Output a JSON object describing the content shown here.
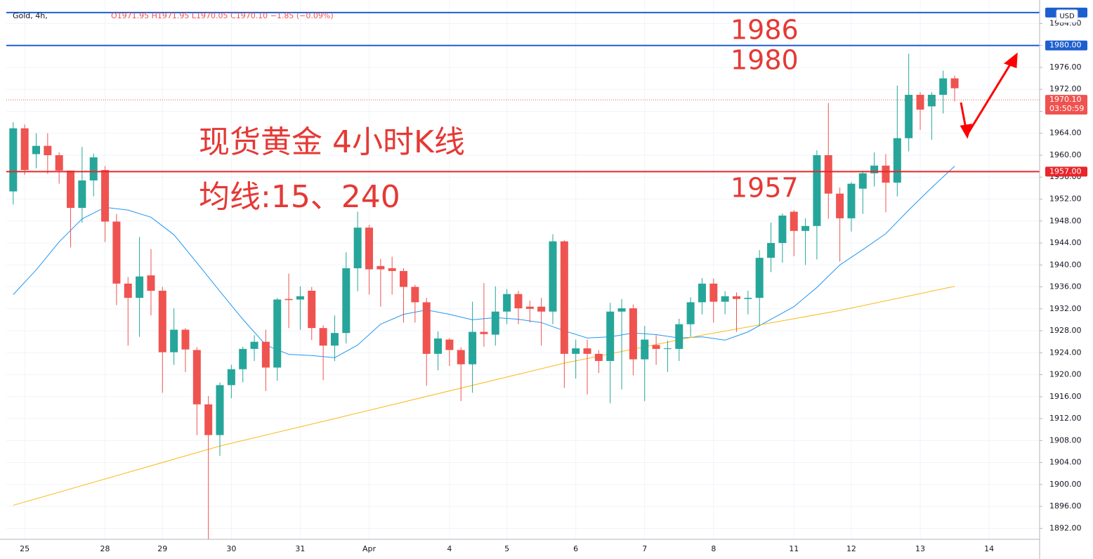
{
  "chart_data": {
    "type": "candlestick",
    "symbol": "Gold, 4h,",
    "ohlc_header": "O1971.95 H1971.95 L1970.05 C1970.10 −1.85 (−0.09%)",
    "currency": "USD",
    "up_color": "#26a69a",
    "down_color": "#ef5350",
    "xlim": [
      -0.6,
      89.4
    ],
    "ylim": [
      1890,
      1987
    ],
    "xticks": [
      {
        "value": 1,
        "label": "25"
      },
      {
        "value": 8,
        "label": "28"
      },
      {
        "value": 13,
        "label": "29"
      },
      {
        "value": 19,
        "label": "30"
      },
      {
        "value": 25,
        "label": "31"
      },
      {
        "value": 31,
        "label": "Apr"
      },
      {
        "value": 38,
        "label": "4"
      },
      {
        "value": 43,
        "label": "5"
      },
      {
        "value": 49,
        "label": "6"
      },
      {
        "value": 55,
        "label": "7"
      },
      {
        "value": 61,
        "label": "8"
      },
      {
        "value": 68,
        "label": "11"
      },
      {
        "value": 73,
        "label": "12"
      },
      {
        "value": 79,
        "label": "13"
      },
      {
        "value": 85,
        "label": "14"
      }
    ],
    "yticks": [
      {
        "value": 1892,
        "label": "1892.00"
      },
      {
        "value": 1896,
        "label": "1896.00"
      },
      {
        "value": 1900,
        "label": "1900.00"
      },
      {
        "value": 1904,
        "label": "1904.00"
      },
      {
        "value": 1908,
        "label": "1908.00"
      },
      {
        "value": 1912,
        "label": "1912.00"
      },
      {
        "value": 1916,
        "label": "1916.00"
      },
      {
        "value": 1920,
        "label": "1920.00"
      },
      {
        "value": 1924,
        "label": "1924.00"
      },
      {
        "value": 1928,
        "label": "1928.00"
      },
      {
        "value": 1932,
        "label": "1932.00"
      },
      {
        "value": 1936,
        "label": "1936.00"
      },
      {
        "value": 1940,
        "label": "1940.00"
      },
      {
        "value": 1944,
        "label": "1944.00"
      },
      {
        "value": 1948,
        "label": "1948.00"
      },
      {
        "value": 1952,
        "label": "1952.00"
      },
      {
        "value": 1956,
        "label": "1956.00"
      },
      {
        "value": 1960,
        "label": "1960.00"
      },
      {
        "value": 1964,
        "label": "1964.00"
      },
      {
        "value": 1968,
        "label": "1968.00"
      },
      {
        "value": 1972,
        "label": "1972.00"
      },
      {
        "value": 1976,
        "label": "1976.00"
      },
      {
        "value": 1980,
        "label": "1980.00"
      },
      {
        "value": 1984,
        "label": "1984.00"
      }
    ],
    "grid": true,
    "candles": [
      {
        "o": 1953.4,
        "h": 1966.0,
        "l": 1951.0,
        "c": 1964.9
      },
      {
        "o": 1964.9,
        "h": 1965.6,
        "l": 1956.4,
        "c": 1957.3
      },
      {
        "o": 1960.2,
        "h": 1964.0,
        "l": 1957.6,
        "c": 1961.7
      },
      {
        "o": 1961.7,
        "h": 1964.0,
        "l": 1956.6,
        "c": 1960.0
      },
      {
        "o": 1960.0,
        "h": 1960.5,
        "l": 1954.8,
        "c": 1957.2
      },
      {
        "o": 1957.2,
        "h": 1957.0,
        "l": 1943.2,
        "c": 1950.4
      },
      {
        "o": 1950.4,
        "h": 1961.5,
        "l": 1947.7,
        "c": 1955.4
      },
      {
        "o": 1955.4,
        "h": 1960.3,
        "l": 1952.5,
        "c": 1959.6
      },
      {
        "o": 1957.3,
        "h": 1958.0,
        "l": 1944.2,
        "c": 1947.9
      },
      {
        "o": 1947.9,
        "h": 1949.3,
        "l": 1932.7,
        "c": 1936.6
      },
      {
        "o": 1936.6,
        "h": 1937.8,
        "l": 1925.3,
        "c": 1934.0
      },
      {
        "o": 1934.0,
        "h": 1945.1,
        "l": 1926.9,
        "c": 1937.9
      },
      {
        "o": 1938.1,
        "h": 1942.9,
        "l": 1930.8,
        "c": 1935.3
      },
      {
        "o": 1935.3,
        "h": 1936.0,
        "l": 1916.7,
        "c": 1924.1
      },
      {
        "o": 1924.1,
        "h": 1932.1,
        "l": 1921.8,
        "c": 1928.2
      },
      {
        "o": 1928.2,
        "h": 1928.5,
        "l": 1920.5,
        "c": 1924.6
      },
      {
        "o": 1924.5,
        "h": 1925.0,
        "l": 1909.0,
        "c": 1914.6
      },
      {
        "o": 1914.6,
        "h": 1916.1,
        "l": 1890.0,
        "c": 1909.0
      },
      {
        "o": 1909.0,
        "h": 1918.6,
        "l": 1905.2,
        "c": 1918.1
      },
      {
        "o": 1918.1,
        "h": 1921.8,
        "l": 1915.7,
        "c": 1921.0
      },
      {
        "o": 1921.0,
        "h": 1925.1,
        "l": 1918.6,
        "c": 1924.7
      },
      {
        "o": 1924.7,
        "h": 1927.2,
        "l": 1922.5,
        "c": 1926.0
      },
      {
        "o": 1926.0,
        "h": 1928.2,
        "l": 1917.0,
        "c": 1921.3
      },
      {
        "o": 1921.3,
        "h": 1934.0,
        "l": 1918.9,
        "c": 1933.7
      },
      {
        "o": 1933.8,
        "h": 1938.4,
        "l": 1928.5,
        "c": 1933.6
      },
      {
        "o": 1933.7,
        "h": 1936.1,
        "l": 1928.2,
        "c": 1934.3
      },
      {
        "o": 1935.3,
        "h": 1936.0,
        "l": 1926.3,
        "c": 1928.5
      },
      {
        "o": 1928.5,
        "h": 1929.0,
        "l": 1919.0,
        "c": 1925.3
      },
      {
        "o": 1925.3,
        "h": 1930.8,
        "l": 1922.5,
        "c": 1927.6
      },
      {
        "o": 1927.6,
        "h": 1942.3,
        "l": 1925.7,
        "c": 1939.4
      },
      {
        "o": 1939.4,
        "h": 1949.7,
        "l": 1935.2,
        "c": 1946.8
      },
      {
        "o": 1946.8,
        "h": 1947.3,
        "l": 1934.6,
        "c": 1939.2
      },
      {
        "o": 1939.8,
        "h": 1941.1,
        "l": 1932.4,
        "c": 1939.2
      },
      {
        "o": 1939.4,
        "h": 1941.5,
        "l": 1934.6,
        "c": 1938.9
      },
      {
        "o": 1938.9,
        "h": 1939.4,
        "l": 1929.5,
        "c": 1936.0
      },
      {
        "o": 1936.0,
        "h": 1936.4,
        "l": 1929.5,
        "c": 1933.2
      },
      {
        "o": 1933.2,
        "h": 1934.0,
        "l": 1918.0,
        "c": 1923.8
      },
      {
        "o": 1923.8,
        "h": 1927.9,
        "l": 1920.8,
        "c": 1926.6
      },
      {
        "o": 1926.4,
        "h": 1926.7,
        "l": 1921.6,
        "c": 1924.5
      },
      {
        "o": 1924.5,
        "h": 1925.0,
        "l": 1915.2,
        "c": 1921.9
      },
      {
        "o": 1921.9,
        "h": 1933.3,
        "l": 1916.7,
        "c": 1927.8
      },
      {
        "o": 1927.8,
        "h": 1936.7,
        "l": 1925.1,
        "c": 1927.4
      },
      {
        "o": 1927.3,
        "h": 1936.1,
        "l": 1925.3,
        "c": 1931.5
      },
      {
        "o": 1931.5,
        "h": 1935.6,
        "l": 1929.2,
        "c": 1934.7
      },
      {
        "o": 1934.7,
        "h": 1935.3,
        "l": 1929.2,
        "c": 1932.1
      },
      {
        "o": 1932.4,
        "h": 1933.5,
        "l": 1929.5,
        "c": 1932.0
      },
      {
        "o": 1932.4,
        "h": 1934.0,
        "l": 1925.3,
        "c": 1931.5
      },
      {
        "o": 1931.5,
        "h": 1945.6,
        "l": 1929.2,
        "c": 1944.3
      },
      {
        "o": 1944.3,
        "h": 1944.5,
        "l": 1917.6,
        "c": 1923.8
      },
      {
        "o": 1923.8,
        "h": 1926.4,
        "l": 1919.3,
        "c": 1924.8
      },
      {
        "o": 1924.8,
        "h": 1926.4,
        "l": 1916.4,
        "c": 1923.8
      },
      {
        "o": 1923.8,
        "h": 1924.5,
        "l": 1920.3,
        "c": 1922.5
      },
      {
        "o": 1922.5,
        "h": 1933.1,
        "l": 1914.8,
        "c": 1931.5
      },
      {
        "o": 1931.5,
        "h": 1933.8,
        "l": 1917.3,
        "c": 1932.1
      },
      {
        "o": 1932.1,
        "h": 1932.8,
        "l": 1919.9,
        "c": 1922.8
      },
      {
        "o": 1922.8,
        "h": 1928.9,
        "l": 1915.2,
        "c": 1926.4
      },
      {
        "o": 1925.4,
        "h": 1927.2,
        "l": 1921.8,
        "c": 1924.7
      },
      {
        "o": 1924.7,
        "h": 1926.2,
        "l": 1920.5,
        "c": 1924.8
      },
      {
        "o": 1924.7,
        "h": 1930.2,
        "l": 1922.5,
        "c": 1929.2
      },
      {
        "o": 1929.2,
        "h": 1934.1,
        "l": 1926.9,
        "c": 1933.2
      },
      {
        "o": 1933.2,
        "h": 1937.6,
        "l": 1931.0,
        "c": 1936.6
      },
      {
        "o": 1936.6,
        "h": 1937.5,
        "l": 1929.5,
        "c": 1933.3
      },
      {
        "o": 1933.3,
        "h": 1935.2,
        "l": 1931.0,
        "c": 1934.3
      },
      {
        "o": 1934.3,
        "h": 1935.0,
        "l": 1927.8,
        "c": 1933.8
      },
      {
        "o": 1933.8,
        "h": 1935.3,
        "l": 1931.0,
        "c": 1934.0
      },
      {
        "o": 1934.0,
        "h": 1942.7,
        "l": 1928.9,
        "c": 1941.3
      },
      {
        "o": 1941.3,
        "h": 1947.7,
        "l": 1938.7,
        "c": 1944.0
      },
      {
        "o": 1944.0,
        "h": 1949.4,
        "l": 1940.4,
        "c": 1949.0
      },
      {
        "o": 1949.7,
        "h": 1950.0,
        "l": 1941.6,
        "c": 1946.2
      },
      {
        "o": 1946.2,
        "h": 1948.5,
        "l": 1940.0,
        "c": 1947.1
      },
      {
        "o": 1947.1,
        "h": 1960.9,
        "l": 1941.0,
        "c": 1960.0
      },
      {
        "o": 1960.0,
        "h": 1969.5,
        "l": 1948.4,
        "c": 1953.0
      },
      {
        "o": 1953.0,
        "h": 1954.1,
        "l": 1940.6,
        "c": 1948.5
      },
      {
        "o": 1948.5,
        "h": 1955.1,
        "l": 1946.1,
        "c": 1954.8
      },
      {
        "o": 1953.9,
        "h": 1957.2,
        "l": 1949.3,
        "c": 1956.7
      },
      {
        "o": 1956.7,
        "h": 1960.5,
        "l": 1954.3,
        "c": 1958.1
      },
      {
        "o": 1958.1,
        "h": 1960.2,
        "l": 1949.6,
        "c": 1955.0
      },
      {
        "o": 1955.0,
        "h": 1972.7,
        "l": 1952.5,
        "c": 1963.1
      },
      {
        "o": 1963.1,
        "h": 1978.5,
        "l": 1960.7,
        "c": 1971.0
      },
      {
        "o": 1971.0,
        "h": 1971.5,
        "l": 1964.6,
        "c": 1968.3
      },
      {
        "o": 1968.9,
        "h": 1971.5,
        "l": 1962.8,
        "c": 1971.0
      },
      {
        "o": 1971.0,
        "h": 1975.4,
        "l": 1967.6,
        "c": 1974.0
      },
      {
        "o": 1974.0,
        "h": 1974.5,
        "l": 1969.8,
        "c": 1972.2
      }
    ],
    "series": [
      {
        "color": "#2196f3",
        "x": [
          0,
          2,
          4,
          6,
          8,
          10,
          12,
          14,
          16,
          18,
          20,
          22,
          24,
          26,
          28,
          30,
          32,
          34,
          36,
          38,
          40,
          42,
          44,
          46,
          48,
          50,
          52,
          54,
          56,
          58,
          60,
          62,
          64,
          66,
          68,
          70,
          72,
          74,
          76,
          78,
          80,
          82
        ],
        "values": [
          1934.6,
          1939.1,
          1944.2,
          1948.4,
          1950.5,
          1950.0,
          1948.7,
          1945.5,
          1940.4,
          1935.2,
          1930.1,
          1925.4,
          1923.7,
          1923.5,
          1923.1,
          1925.4,
          1929.2,
          1931.0,
          1931.8,
          1931.0,
          1930.0,
          1930.4,
          1930.1,
          1929.5,
          1928.0,
          1926.7,
          1926.9,
          1927.6,
          1927.3,
          1926.7,
          1926.9,
          1926.3,
          1927.8,
          1930.1,
          1932.4,
          1935.9,
          1940.0,
          1942.8,
          1945.7,
          1950.0,
          1954.1,
          1958.0
        ]
      },
      {
        "color": "#f9b915",
        "x": [
          0,
          18,
          28,
          48,
          60,
          72,
          82
        ],
        "values": [
          1896.2,
          1907.0,
          1912.0,
          1922.1,
          1927.2,
          1931.7,
          1936.1
        ]
      }
    ],
    "levels": [
      {
        "value": 1986,
        "color": "#1e5fd0"
      },
      {
        "value": 1980,
        "color": "#1e5fd0",
        "label": "1980.00"
      },
      {
        "value": 1957,
        "color": "#e8262b",
        "label": "1957.00"
      }
    ],
    "current_price": {
      "value": 1970.1,
      "label": "1970.10",
      "countdown": "03:50:59"
    },
    "annotations": {
      "level_1986": "1986",
      "level_1980": "1980",
      "level_1957": "1957",
      "title": "现货黄金 4小时K线",
      "ma_note": "均线:15、240"
    }
  }
}
